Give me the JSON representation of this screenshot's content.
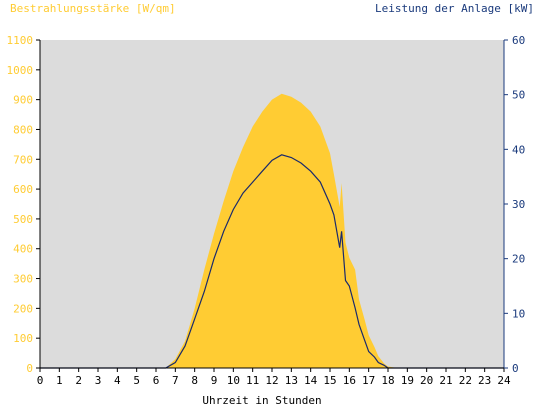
{
  "chart_data": {
    "type": "area",
    "left_axis_title": "Bestrahlungsstärke [W/qm]",
    "right_axis_title": "Leistung der Anlage [kW]",
    "xlabel": "Uhrzeit in Stunden",
    "xlim": [
      0,
      24
    ],
    "ylim_left": [
      0,
      1100
    ],
    "ylim_right": [
      0,
      60
    ],
    "x_ticks": [
      "0",
      "1",
      "2",
      "3",
      "4",
      "5",
      "6",
      "7",
      "8",
      "9",
      "10",
      "11",
      "12",
      "13",
      "14",
      "15",
      "16",
      "17",
      "18",
      "19",
      "20",
      "21",
      "22",
      "23",
      "24"
    ],
    "y_left_ticks": [
      "0",
      "100",
      "200",
      "300",
      "400",
      "500",
      "600",
      "700",
      "800",
      "900",
      "1000",
      "1100"
    ],
    "y_right_ticks": [
      "0",
      "10",
      "20",
      "30",
      "40",
      "50",
      "60"
    ],
    "grid": false,
    "colors": {
      "plot_background": "#dcdcdc",
      "irradiance_fill": "#ffcc33",
      "power_line": "#1a2a6c",
      "left_axis_text": "#ffcc33",
      "right_axis_text": "#1a3a7c",
      "x_axis_text": "#000000"
    },
    "series": [
      {
        "axis": "left",
        "style": "area",
        "x": [
          0,
          6.5,
          7,
          7.5,
          8,
          8.5,
          9,
          9.5,
          10,
          10.5,
          11,
          11.5,
          12,
          12.5,
          13,
          13.5,
          14,
          14.5,
          15,
          15.2,
          15.5,
          15.6,
          15.8,
          16,
          16.3,
          16.5,
          16.8,
          17,
          17.3,
          17.5,
          17.8,
          18,
          18.5,
          24
        ],
        "values": [
          0,
          0,
          30,
          90,
          200,
          330,
          450,
          560,
          660,
          740,
          810,
          860,
          900,
          920,
          910,
          890,
          860,
          810,
          720,
          650,
          540,
          620,
          420,
          370,
          330,
          230,
          160,
          110,
          70,
          40,
          15,
          5,
          0,
          0
        ]
      },
      {
        "axis": "right",
        "style": "line",
        "x": [
          0,
          6.5,
          7,
          7.5,
          8,
          8.5,
          9,
          9.5,
          10,
          10.5,
          11,
          11.5,
          12,
          12.5,
          13,
          13.5,
          14,
          14.5,
          15,
          15.2,
          15.5,
          15.6,
          15.8,
          16,
          16.3,
          16.5,
          16.8,
          17,
          17.3,
          17.5,
          17.8,
          18,
          18.5,
          24
        ],
        "values": [
          0,
          0,
          1,
          4,
          9,
          14,
          20,
          25,
          29,
          32,
          34,
          36,
          38,
          39,
          38.5,
          37.5,
          36,
          34,
          30,
          28,
          22,
          25,
          16,
          15,
          11,
          8,
          5,
          3,
          2,
          1,
          0.5,
          0,
          0,
          0
        ]
      }
    ]
  }
}
